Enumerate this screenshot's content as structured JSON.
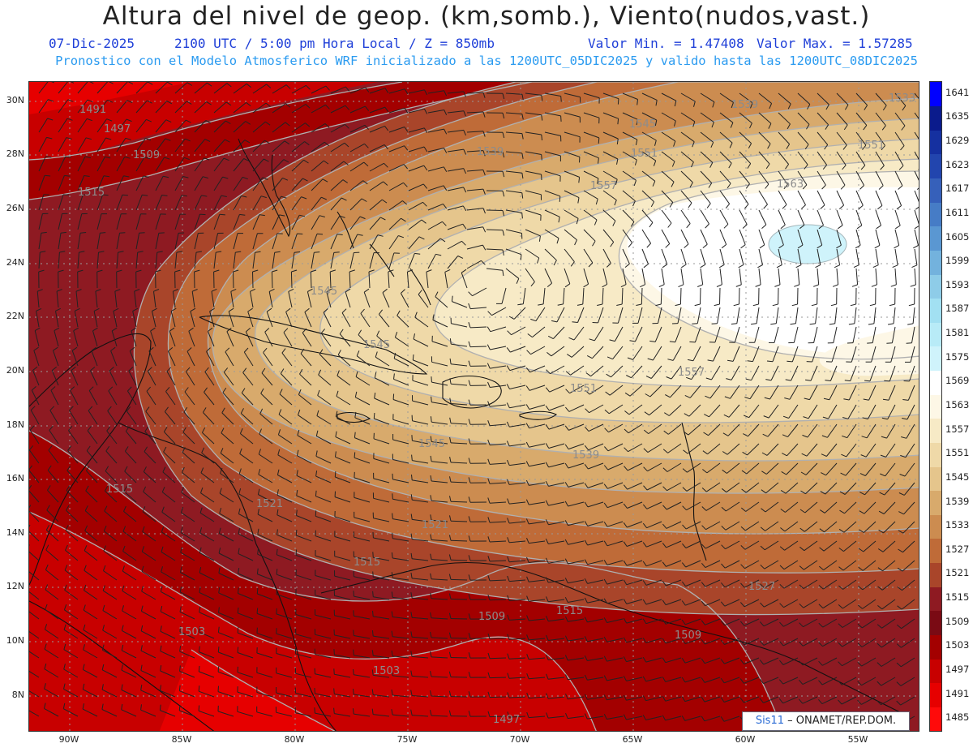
{
  "header": {
    "title": "Altura del nivel de geop. (km,somb.), Viento(nudos,vast.)",
    "date": "07-Dic-2025",
    "time": "2100 UTC / 5:00 pm Hora Local / Z = 850mb",
    "vmin": "Valor Min. = 1.47408",
    "vmax": "Valor Max. = 1.57285",
    "model_line": "Pronostico con el Modelo Atmosferico WRF inicializado a las 1200UTC_05DIC2025 y valido hasta las  1200UTC_08DIC2025"
  },
  "axes": {
    "lat_labels": [
      "30N",
      "28N",
      "26N",
      "24N",
      "22N",
      "20N",
      "18N",
      "16N",
      "14N",
      "12N",
      "10N",
      "8N"
    ],
    "lon_labels": [
      "90W",
      "85W",
      "80W",
      "75W",
      "70W",
      "65W",
      "60W",
      "55W"
    ]
  },
  "colorbar": {
    "levels": [
      "1485",
      "1491",
      "1497",
      "1503",
      "1509",
      "1515",
      "1521",
      "1527",
      "1533",
      "1539",
      "1545",
      "1551",
      "1557",
      "1563",
      "1569",
      "1575",
      "1581",
      "1587",
      "1593",
      "1599",
      "1605",
      "1611",
      "1617",
      "1623",
      "1629",
      "1635",
      "1641"
    ],
    "colors": [
      "#ff0a0a",
      "#e60000",
      "#c80000",
      "#a30000",
      "#7a0a14",
      "#8e1a22",
      "#a9452a",
      "#bf6b38",
      "#cc8c50",
      "#d8aa6c",
      "#e5c58c",
      "#efd9a8",
      "#f7eac6",
      "#fdf7e6",
      "#ffffff",
      "#cff3fb",
      "#b8ebf7",
      "#a2e0f2",
      "#8ecce8",
      "#73b2dd",
      "#5a97d2",
      "#467cc6",
      "#3660ba",
      "#2245ae",
      "#1530a0",
      "#0a1b8c",
      "#0000ff"
    ]
  },
  "contour_labels": [
    "1491",
    "1497",
    "1509",
    "1515",
    "1539",
    "1545",
    "1551",
    "1557",
    "1563",
    "1545",
    "1545",
    "1557",
    "1551",
    "1539",
    "1515",
    "1521",
    "1521",
    "1527",
    "1515",
    "1503",
    "1509",
    "1515",
    "1509",
    "1503",
    "1497",
    "1533",
    "1539",
    "1545",
    "1551"
  ],
  "credit": {
    "logo": "Sis11",
    "text": "– ONAMET/REP.DOM."
  }
}
